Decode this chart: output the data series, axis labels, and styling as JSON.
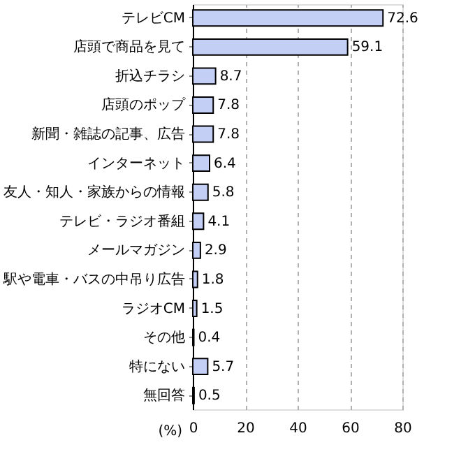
{
  "chart_data": {
    "type": "bar",
    "orientation": "horizontal",
    "xlabel": "(%)",
    "categories": [
      "テレビCM",
      "店頭で商品を見て",
      "折込チラシ",
      "店頭のポップ",
      "新聞・雑誌の記事、広告",
      "インターネット",
      "友人・知人・家族からの情報",
      "テレビ・ラジオ番組",
      "メールマガジン",
      "駅や電車・バスの中吊り広告",
      "ラジオCM",
      "その他",
      "特にない",
      "無回答"
    ],
    "values": [
      72.6,
      59.1,
      8.7,
      7.8,
      7.8,
      6.4,
      5.8,
      4.1,
      2.9,
      1.8,
      1.5,
      0.4,
      5.7,
      0.5
    ],
    "color": "#c3cff5",
    "xlim": [
      0,
      80
    ],
    "xticks": [
      0,
      20,
      40,
      60,
      80
    ],
    "grid": "x",
    "data_labels": true
  }
}
